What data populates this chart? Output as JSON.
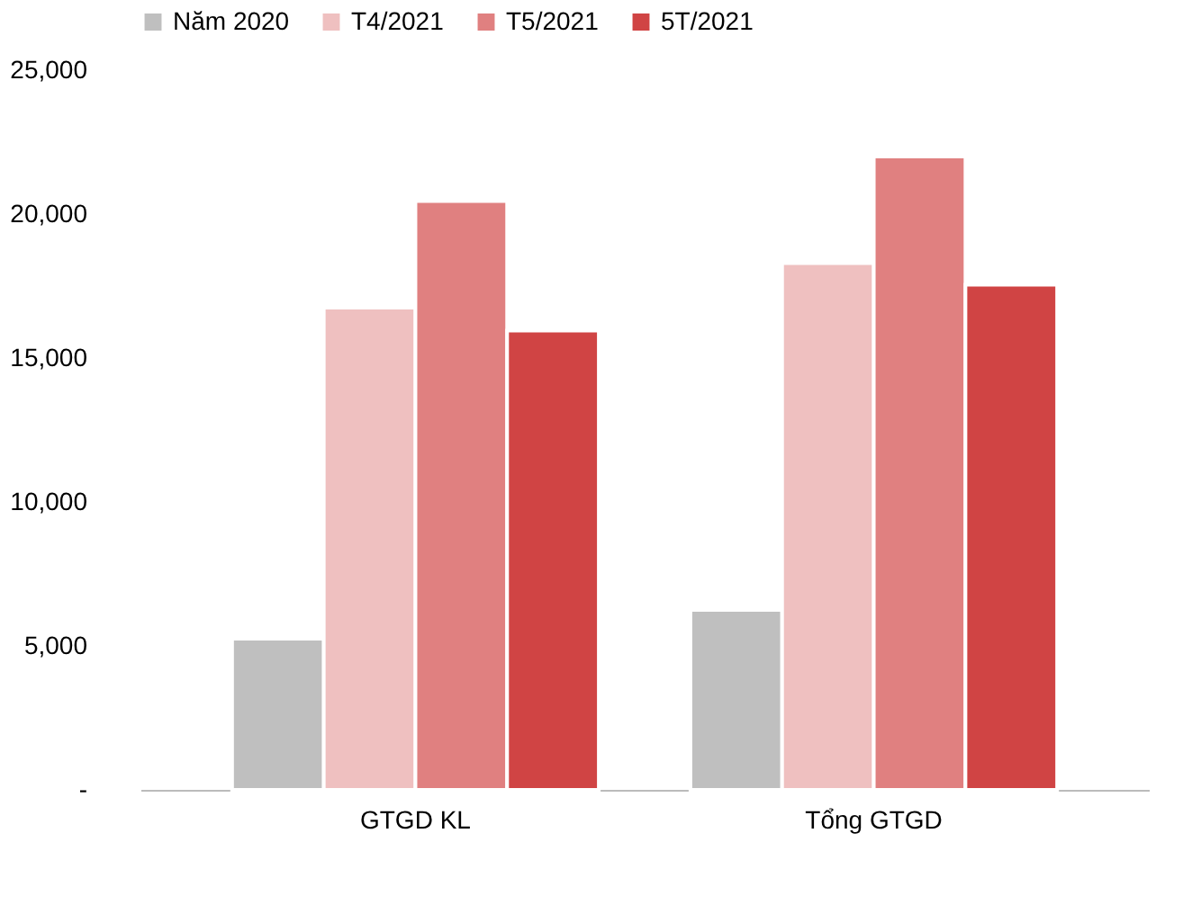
{
  "chart_data": {
    "type": "bar",
    "categories": [
      "GTGD KL",
      "Tổng GTGD"
    ],
    "series": [
      {
        "name": "Năm 2020",
        "color": "#bfbfbf",
        "values": [
          5250,
          6250
        ]
      },
      {
        "name": "T4/2021",
        "color": "#efc0c0",
        "values": [
          16750,
          18300
        ]
      },
      {
        "name": "T5/2021",
        "color": "#e08080",
        "values": [
          20450,
          22000
        ]
      },
      {
        "name": "5T/2021",
        "color": "#d04444",
        "values": [
          15950,
          17550
        ]
      }
    ],
    "ylim": [
      0,
      25000
    ],
    "yticks": [
      {
        "value": 0,
        "label": "-"
      },
      {
        "value": 5000,
        "label": "5,000"
      },
      {
        "value": 10000,
        "label": "10,000"
      },
      {
        "value": 15000,
        "label": "15,000"
      },
      {
        "value": 20000,
        "label": "20,000"
      },
      {
        "value": 25000,
        "label": "25,000"
      }
    ],
    "grid": false,
    "legend": "top"
  }
}
